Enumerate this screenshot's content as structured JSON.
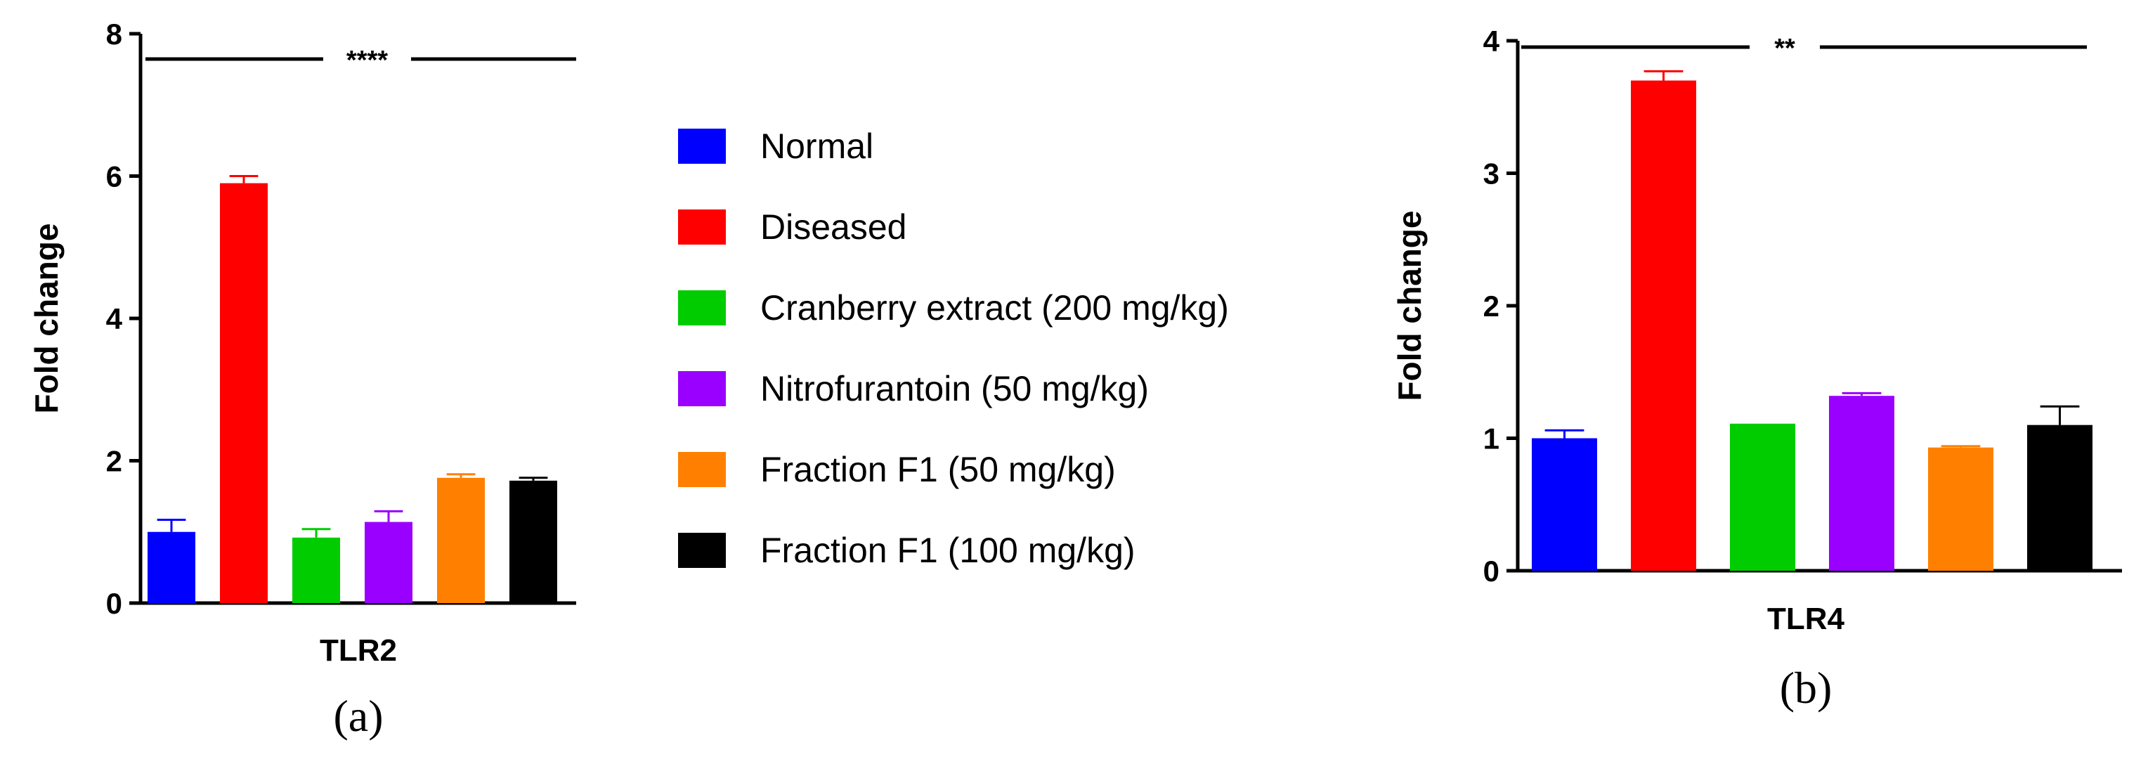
{
  "legend": {
    "items": [
      {
        "label": "Normal",
        "color": "#0000ff"
      },
      {
        "label": "Diseased",
        "color": "#ff0000"
      },
      {
        "label": "Cranberry extract (200 mg/kg)",
        "color": "#00cc00"
      },
      {
        "label": "Nitrofurantoin (50 mg/kg)",
        "color": "#9900ff"
      },
      {
        "label": "Fraction F1 (50 mg/kg)",
        "color": "#ff8000"
      },
      {
        "label": "Fraction F1 (100 mg/kg)",
        "color": "#000000"
      }
    ]
  },
  "chart_data": [
    {
      "type": "bar",
      "panel_label": "(a)",
      "xlabel": "TLR2",
      "ylabel": "Fold change",
      "ylim": [
        0,
        8
      ],
      "yticks": [
        "0",
        "2",
        "4",
        "6",
        "8"
      ],
      "significance": "****",
      "categories": [
        "Normal",
        "Diseased",
        "Cranberry extract (200 mg/kg)",
        "Nitrofurantoin (50 mg/kg)",
        "Fraction F1 (50 mg/kg)",
        "Fraction F1 (100 mg/kg)"
      ],
      "values": [
        1.0,
        5.9,
        0.92,
        1.14,
        1.76,
        1.72
      ],
      "errors": [
        0.17,
        0.1,
        0.12,
        0.15,
        0.05,
        0.04
      ],
      "colors": [
        "#0000ff",
        "#ff0000",
        "#00cc00",
        "#9900ff",
        "#ff8000",
        "#000000"
      ],
      "error_colors": [
        "#0000ff",
        "#ff0000",
        "#00cc00",
        "#9900ff",
        "#ff8000",
        "#000000"
      ]
    },
    {
      "type": "bar",
      "panel_label": "(b)",
      "xlabel": "TLR4",
      "ylabel": "Fold change",
      "ylim": [
        0,
        4
      ],
      "yticks": [
        "0",
        "1",
        "2",
        "3",
        "4"
      ],
      "significance": "**",
      "categories": [
        "Normal",
        "Diseased",
        "Cranberry extract (200 mg/kg)",
        "Nitrofurantoin (50 mg/kg)",
        "Fraction F1 (50 mg/kg)",
        "Fraction F1 (100 mg/kg)"
      ],
      "values": [
        1.0,
        3.7,
        1.11,
        1.32,
        0.93,
        1.1
      ],
      "errors": [
        0.06,
        0.07,
        0.0,
        0.02,
        0.01,
        0.14
      ],
      "colors": [
        "#0000ff",
        "#ff0000",
        "#00cc00",
        "#9900ff",
        "#ff8000",
        "#000000"
      ],
      "error_colors": [
        "#0000ff",
        "#ff0000",
        "#00cc00",
        "#9900ff",
        "#ff8000",
        "#000000"
      ]
    }
  ]
}
